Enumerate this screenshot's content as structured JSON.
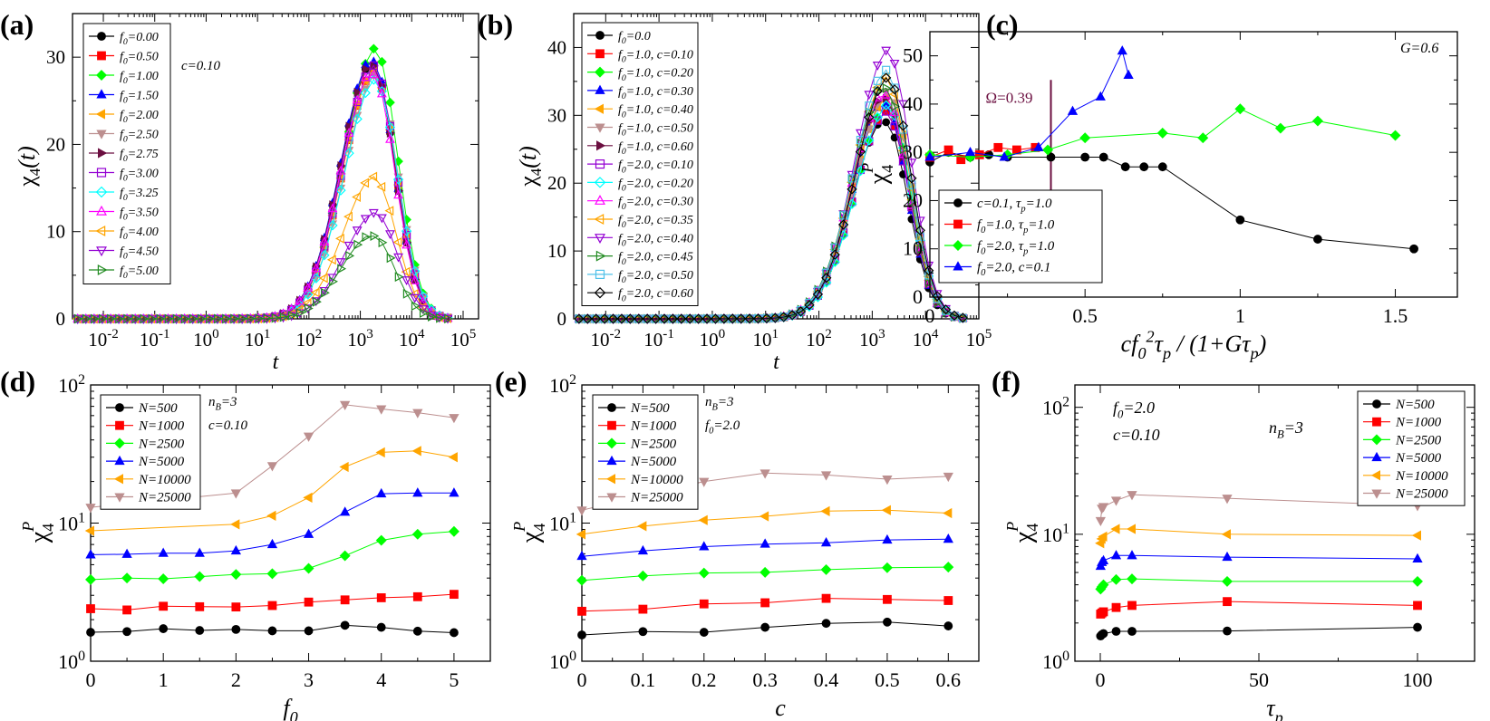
{
  "chart_data": [
    {
      "panel": "a",
      "type": "line",
      "xlabel": "t",
      "ylabel": "χ4(t)",
      "xscale": "log",
      "xlim_decades": [
        -2.6,
        5.3
      ],
      "xticks": [
        "10^-2",
        "10^-1",
        "10^0",
        "10^1",
        "10^2",
        "10^3",
        "10^4",
        "10^5"
      ],
      "ylim": [
        0,
        35
      ],
      "yticks": [
        0,
        10,
        20,
        30
      ],
      "annotation": "c=0.10",
      "legend_position": "top-left",
      "series": [
        {
          "name": "f0=0.00",
          "color": "#000000",
          "marker": "circle",
          "peak": 29
        },
        {
          "name": "f0=0.50",
          "color": "#ff0000",
          "marker": "square",
          "peak": 28
        },
        {
          "name": "f0=1.00",
          "color": "#00ff00",
          "marker": "diamond",
          "peak": 30.5
        },
        {
          "name": "f0=1.50",
          "color": "#0000ff",
          "marker": "tri-up",
          "peak": 29.5
        },
        {
          "name": "f0=2.00",
          "color": "#ffa500",
          "marker": "tri-left",
          "peak": 28
        },
        {
          "name": "f0=2.50",
          "color": "#bc8f8f",
          "marker": "tri-down",
          "peak": 27.5
        },
        {
          "name": "f0=2.75",
          "color": "#6b0f40",
          "marker": "tri-right",
          "peak": 29
        },
        {
          "name": "f0=3.00",
          "color": "#9400d3",
          "marker": "square-open",
          "peak": 28.5
        },
        {
          "name": "f0=3.25",
          "color": "#00ffff",
          "marker": "diamond-open",
          "peak": 27
        },
        {
          "name": "f0=3.50",
          "color": "#ff00ff",
          "marker": "tri-up-open",
          "peak": 28
        },
        {
          "name": "f0=4.00",
          "color": "#ffa500",
          "marker": "tri-left-open",
          "peak": 16
        },
        {
          "name": "f0=4.50",
          "color": "#9400d3",
          "marker": "tri-down-open",
          "peak": 12
        },
        {
          "name": "f0=5.00",
          "color": "#228b22",
          "marker": "tri-right-open",
          "peak": 9.5
        }
      ]
    },
    {
      "panel": "b",
      "type": "line",
      "xlabel": "t",
      "ylabel": "χ4(t)",
      "xscale": "log",
      "xlim_decades": [
        -2.6,
        5.0
      ],
      "xticks": [
        "10^-2",
        "10^-1",
        "10^0",
        "10^1",
        "10^2",
        "10^3",
        "10^4",
        "10^5"
      ],
      "ylim": [
        0,
        45
      ],
      "yticks": [
        0,
        10,
        20,
        30,
        40
      ],
      "legend_position": "top-left",
      "series": [
        {
          "name": "f0=0.0",
          "color": "#000000",
          "marker": "circle",
          "peak": 29
        },
        {
          "name": "f0=1.0, c=0.10",
          "color": "#ff0000",
          "marker": "square",
          "peak": 30
        },
        {
          "name": "f0=1.0, c=0.20",
          "color": "#00ff00",
          "marker": "diamond",
          "peak": 31
        },
        {
          "name": "f0=1.0, c=0.30",
          "color": "#0000ff",
          "marker": "tri-up",
          "peak": 31.5
        },
        {
          "name": "f0=1.0, c=0.40",
          "color": "#ffa500",
          "marker": "tri-left",
          "peak": 32
        },
        {
          "name": "f0=1.0, c=0.50",
          "color": "#bc8f8f",
          "marker": "tri-down",
          "peak": 33
        },
        {
          "name": "f0=1.0, c=0.60",
          "color": "#6b0f40",
          "marker": "tri-right",
          "peak": 32.5
        },
        {
          "name": "f0=2.0, c=0.10",
          "color": "#9400d3",
          "marker": "square-open",
          "peak": 30
        },
        {
          "name": "f0=2.0, c=0.20",
          "color": "#00ffff",
          "marker": "diamond-open",
          "peak": 31
        },
        {
          "name": "f0=2.0, c=0.30",
          "color": "#ff00ff",
          "marker": "tri-up-open",
          "peak": 33
        },
        {
          "name": "f0=2.0, c=0.35",
          "color": "#ffa500",
          "marker": "tri-left-open",
          "peak": 35
        },
        {
          "name": "f0=2.0, c=0.40",
          "color": "#9400d3",
          "marker": "tri-down-open",
          "peak": 39
        },
        {
          "name": "f0=2.0, c=0.45",
          "color": "#228b22",
          "marker": "tri-right-open",
          "peak": 34
        },
        {
          "name": "f0=2.0, c=0.50",
          "color": "#4fc1e9",
          "marker": "square-open",
          "peak": 36
        },
        {
          "name": "f0=2.0, c=0.60",
          "color": "#000000",
          "marker": "diamond-open",
          "peak": 35
        }
      ]
    },
    {
      "panel": "c",
      "type": "line",
      "xlabel": "cf0²τp / (1+Gτp)",
      "ylabel": "χ4P",
      "xlim": [
        0,
        1.7
      ],
      "ylim": [
        0,
        55
      ],
      "xticks": [
        0,
        0.5,
        1,
        1.5
      ],
      "yticks": [
        0,
        10,
        20,
        30,
        40,
        50
      ],
      "annotation": "G=0.6",
      "vline": {
        "x": 0.39,
        "label": "Ω=0.39",
        "color": "#6b0f40"
      },
      "legend_position": "bottom-left",
      "series": [
        {
          "name": "c=0.1, τp=1.0",
          "color": "#000000",
          "marker": "circle",
          "x": [
            0,
            0.06,
            0.13,
            0.19,
            0.25,
            0.39,
            0.5,
            0.56,
            0.63,
            0.69,
            0.75,
            1.0,
            1.25,
            1.56
          ],
          "y": [
            28,
            30,
            29,
            29.5,
            29,
            29,
            29,
            29,
            27,
            27,
            27,
            16,
            12,
            10
          ]
        },
        {
          "name": "f0=1.0, τp=1.0",
          "color": "#ff0000",
          "marker": "square",
          "x": [
            0,
            0.06,
            0.1,
            0.16,
            0.22,
            0.28,
            0.34
          ],
          "y": [
            29,
            30.5,
            28.5,
            29.5,
            31,
            30.5,
            31
          ]
        },
        {
          "name": "f0=2.0, τp=1.0",
          "color": "#00ff00",
          "marker": "diamond",
          "x": [
            0,
            0.13,
            0.25,
            0.38,
            0.5,
            0.75,
            0.88,
            1.0,
            1.13,
            1.25,
            1.5
          ],
          "y": [
            29.5,
            29,
            29.5,
            30.5,
            33,
            34,
            33,
            39,
            35,
            36.5,
            33.5
          ]
        },
        {
          "name": "f0=2.0, c=0.1",
          "color": "#0000ff",
          "marker": "tri-up",
          "x": [
            0,
            0.13,
            0.24,
            0.35,
            0.46,
            0.55,
            0.62,
            0.64
          ],
          "y": [
            29,
            30,
            29,
            31,
            38.5,
            41.5,
            51,
            46
          ]
        }
      ]
    },
    {
      "panel": "d",
      "type": "line",
      "xlabel": "f0",
      "ylabel": "χ4P",
      "yscale": "log",
      "xlim": [
        0,
        5.5
      ],
      "ylim": [
        1,
        100
      ],
      "xticks": [
        0,
        1,
        2,
        3,
        4,
        5
      ],
      "yticks": [
        "10^0",
        "10^1",
        "10^2"
      ],
      "annotations": [
        "nB=3",
        "c=0.10"
      ],
      "legend_position": "top-left",
      "series": [
        {
          "name": "N=500",
          "color": "#000000",
          "marker": "circle",
          "x": [
            0,
            0.5,
            1,
            1.5,
            2,
            2.5,
            3,
            3.5,
            4,
            4.5,
            5
          ],
          "y": [
            1.62,
            1.64,
            1.72,
            1.67,
            1.7,
            1.66,
            1.66,
            1.82,
            1.76,
            1.65,
            1.61
          ]
        },
        {
          "name": "N=1000",
          "color": "#ff0000",
          "marker": "square",
          "x": [
            0,
            0.5,
            1,
            1.5,
            2,
            2.5,
            3,
            3.5,
            4,
            4.5,
            5
          ],
          "y": [
            2.4,
            2.35,
            2.5,
            2.48,
            2.47,
            2.53,
            2.68,
            2.78,
            2.88,
            2.93,
            3.05
          ]
        },
        {
          "name": "N=2500",
          "color": "#00ff00",
          "marker": "diamond",
          "x": [
            0,
            0.5,
            1,
            1.5,
            2,
            2.5,
            3,
            3.5,
            4,
            4.5,
            5
          ],
          "y": [
            3.9,
            4.0,
            3.95,
            4.1,
            4.25,
            4.3,
            4.7,
            5.8,
            7.5,
            8.3,
            8.7
          ]
        },
        {
          "name": "N=5000",
          "color": "#0000ff",
          "marker": "tri-up",
          "x": [
            0,
            0.5,
            1,
            1.5,
            2,
            2.5,
            3,
            3.5,
            4,
            4.5,
            5
          ],
          "y": [
            5.9,
            5.95,
            6.05,
            6.05,
            6.3,
            7.0,
            8.3,
            12,
            16.3,
            16.5,
            16.5
          ]
        },
        {
          "name": "N=10000",
          "color": "#ffa500",
          "marker": "tri-left",
          "x": [
            0,
            2,
            2.5,
            3,
            3.5,
            4,
            4.5,
            5
          ],
          "y": [
            8.8,
            9.8,
            11.3,
            15.3,
            25.5,
            32.5,
            33.3,
            30
          ]
        },
        {
          "name": "N=25000",
          "color": "#bc8f8f",
          "marker": "tri-down",
          "x": [
            0,
            2,
            2.5,
            3,
            3.5,
            4,
            4.5,
            5
          ],
          "y": [
            13,
            16.5,
            26,
            42.5,
            72,
            67,
            63,
            58
          ]
        }
      ]
    },
    {
      "panel": "e",
      "type": "line",
      "xlabel": "c",
      "ylabel": "χ4P",
      "yscale": "log",
      "xlim": [
        0,
        0.65
      ],
      "ylim": [
        1,
        100
      ],
      "xticks": [
        0,
        0.1,
        0.2,
        0.3,
        0.4,
        0.5,
        0.6
      ],
      "yticks": [
        "10^0",
        "10^1",
        "10^2"
      ],
      "annotations": [
        "nB=3",
        "f0=2.0"
      ],
      "legend_position": "top-left",
      "series": [
        {
          "name": "N=500",
          "color": "#000000",
          "marker": "circle",
          "x": [
            0,
            0.1,
            0.2,
            0.3,
            0.4,
            0.5,
            0.6
          ],
          "y": [
            1.55,
            1.64,
            1.62,
            1.76,
            1.88,
            1.92,
            1.8
          ]
        },
        {
          "name": "N=1000",
          "color": "#ff0000",
          "marker": "square",
          "x": [
            0,
            0.1,
            0.2,
            0.3,
            0.4,
            0.5,
            0.6
          ],
          "y": [
            2.3,
            2.38,
            2.6,
            2.65,
            2.85,
            2.8,
            2.75
          ]
        },
        {
          "name": "N=2500",
          "color": "#00ff00",
          "marker": "diamond",
          "x": [
            0,
            0.1,
            0.2,
            0.3,
            0.4,
            0.5,
            0.6
          ],
          "y": [
            3.85,
            4.15,
            4.35,
            4.4,
            4.6,
            4.75,
            4.8
          ]
        },
        {
          "name": "N=5000",
          "color": "#0000ff",
          "marker": "tri-up",
          "x": [
            0,
            0.1,
            0.2,
            0.3,
            0.4,
            0.5,
            0.6
          ],
          "y": [
            5.75,
            6.3,
            6.75,
            7.05,
            7.2,
            7.55,
            7.65
          ]
        },
        {
          "name": "N=10000",
          "color": "#ffa500",
          "marker": "tri-left",
          "x": [
            0,
            0.1,
            0.2,
            0.3,
            0.4,
            0.5,
            0.6
          ],
          "y": [
            8.3,
            9.5,
            10.5,
            11.2,
            12.2,
            12.4,
            11.8
          ]
        },
        {
          "name": "N=25000",
          "color": "#bc8f8f",
          "marker": "tri-down",
          "x": [
            0,
            0.1,
            0.2,
            0.3,
            0.4,
            0.5,
            0.6
          ],
          "y": [
            12.4,
            15.8,
            20,
            23,
            22.3,
            20.8,
            21.8
          ]
        }
      ]
    },
    {
      "panel": "f",
      "type": "line",
      "xlabel": "τp",
      "ylabel": "χ4P",
      "yscale": "log",
      "xlim": [
        -8,
        118
      ],
      "ylim": [
        1,
        150
      ],
      "xticks": [
        0,
        50,
        100
      ],
      "yticks": [
        "10^0",
        "10^1",
        "10^2"
      ],
      "annotations": [
        "f0=2.0",
        "c=0.10",
        "nB=3"
      ],
      "legend_position": "top-right",
      "series": [
        {
          "name": "N=500",
          "color": "#000000",
          "marker": "circle",
          "x": [
            0.1,
            0.5,
            1,
            5,
            10,
            40,
            100
          ],
          "y": [
            1.58,
            1.62,
            1.65,
            1.72,
            1.72,
            1.73,
            1.85
          ]
        },
        {
          "name": "N=1000",
          "color": "#ff0000",
          "marker": "square",
          "x": [
            0.1,
            0.5,
            1,
            5,
            10,
            40,
            100
          ],
          "y": [
            2.35,
            2.4,
            2.45,
            2.65,
            2.75,
            2.95,
            2.75
          ]
        },
        {
          "name": "N=2500",
          "color": "#00ff00",
          "marker": "diamond",
          "x": [
            0.1,
            0.5,
            1,
            5,
            10,
            40,
            100
          ],
          "y": [
            3.7,
            3.85,
            4.0,
            4.4,
            4.45,
            4.25,
            4.25
          ]
        },
        {
          "name": "N=5000",
          "color": "#0000ff",
          "marker": "tri-up",
          "x": [
            0.1,
            0.5,
            1,
            5,
            10,
            40,
            100
          ],
          "y": [
            5.6,
            6.0,
            6.2,
            6.8,
            6.8,
            6.6,
            6.4
          ]
        },
        {
          "name": "N=10000",
          "color": "#ffa500",
          "marker": "tri-left",
          "x": [
            0.1,
            0.5,
            1,
            5,
            10,
            40,
            100
          ],
          "y": [
            8.5,
            9.2,
            9.6,
            11,
            11,
            10,
            9.8
          ]
        },
        {
          "name": "N=25000",
          "color": "#bc8f8f",
          "marker": "tri-down",
          "x": [
            0.1,
            0.5,
            1,
            5,
            10,
            40,
            100
          ],
          "y": [
            12.8,
            16,
            16.5,
            18.5,
            20.5,
            19.2,
            16.8
          ]
        }
      ]
    }
  ]
}
